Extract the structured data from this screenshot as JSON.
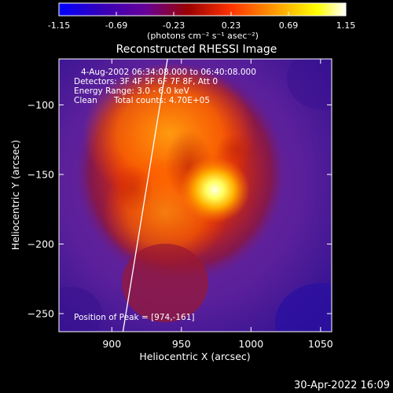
{
  "colorbar": {
    "ticks": [
      "-1.15",
      "-0.69",
      "-0.23",
      "0.23",
      "0.69",
      "1.15"
    ],
    "units": "(photons cm⁻² s⁻¹ asec⁻²)",
    "range": [
      -1.15,
      1.15
    ]
  },
  "title": "Reconstructed RHESSI Image",
  "info": {
    "time_range": "4-Aug-2002 06:34:08.000 to 06:40:08.000",
    "detectors": "Detectors: 3F 4F 5F 6F 7F 8F, Att 0",
    "energy_range": "Energy Range: 3.0 - 6.0 keV",
    "algorithm": "Clean",
    "total_counts": "Total counts: 4.70E+05",
    "peak_position": "Position of Peak = [974,-161]"
  },
  "axes": {
    "xlabel": "Heliocentric X (arcsec)",
    "ylabel": "Heliocentric Y (arcsec)",
    "xlim": [
      862,
      1058
    ],
    "ylim": [
      -263,
      -67
    ],
    "xticks": [
      900,
      950,
      1000,
      1050
    ],
    "yticks": [
      -100,
      -150,
      -200,
      -250
    ],
    "xtick_labels": [
      "900",
      "950",
      "1000",
      "1050"
    ],
    "ytick_labels": [
      "−100",
      "−150",
      "−200",
      "−250"
    ]
  },
  "peak": {
    "x": 974,
    "y": -161
  },
  "limb_line": {
    "x": [
      940,
      908
    ],
    "y": [
      -67,
      -263
    ]
  },
  "footer": {
    "timestamp": "30-Apr-2022 16:09"
  },
  "colors": {
    "background": "#000000",
    "text": "#ffffff",
    "colormap": [
      "#0000ff",
      "#3300bb",
      "#660099",
      "#990000",
      "#ff3300",
      "#ff9900",
      "#ffff00",
      "#ffffff"
    ]
  }
}
